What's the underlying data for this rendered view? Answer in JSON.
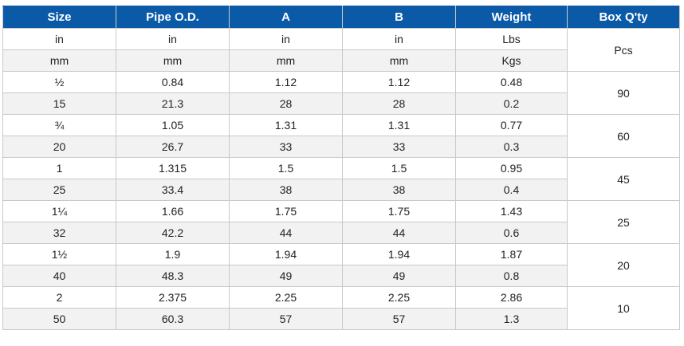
{
  "headers": [
    "Size",
    "Pipe O.D.",
    "A",
    "B",
    "Weight",
    "Box Q'ty"
  ],
  "unit_rows": [
    [
      "in",
      "in",
      "in",
      "in",
      "Lbs"
    ],
    [
      "mm",
      "mm",
      "mm",
      "mm",
      "Kgs"
    ]
  ],
  "box_unit": "Pcs",
  "groups": [
    {
      "in": [
        "½",
        "0.84",
        "1.12",
        "1.12",
        "0.48"
      ],
      "mm": [
        "15",
        "21.3",
        "28",
        "28",
        "0.2"
      ],
      "box": "90"
    },
    {
      "in": [
        "¾",
        "1.05",
        "1.31",
        "1.31",
        "0.77"
      ],
      "mm": [
        "20",
        "26.7",
        "33",
        "33",
        "0.3"
      ],
      "box": "60"
    },
    {
      "in": [
        "1",
        "1.315",
        "1.5",
        "1.5",
        "0.95"
      ],
      "mm": [
        "25",
        "33.4",
        "38",
        "38",
        "0.4"
      ],
      "box": "45"
    },
    {
      "in": [
        "1¼",
        "1.66",
        "1.75",
        "1.75",
        "1.43"
      ],
      "mm": [
        "32",
        "42.2",
        "44",
        "44",
        "0.6"
      ],
      "box": "25"
    },
    {
      "in": [
        "1½",
        "1.9",
        "1.94",
        "1.94",
        "1.87"
      ],
      "mm": [
        "40",
        "48.3",
        "49",
        "49",
        "0.8"
      ],
      "box": "20"
    },
    {
      "in": [
        "2",
        "2.375",
        "2.25",
        "2.25",
        "2.86"
      ],
      "mm": [
        "50",
        "60.3",
        "57",
        "57",
        "1.3"
      ],
      "box": "10"
    }
  ],
  "colors": {
    "header_bg": "#0b5aa8",
    "zebra_bg": "#f2f2f2",
    "border": "#c9c9c9"
  }
}
